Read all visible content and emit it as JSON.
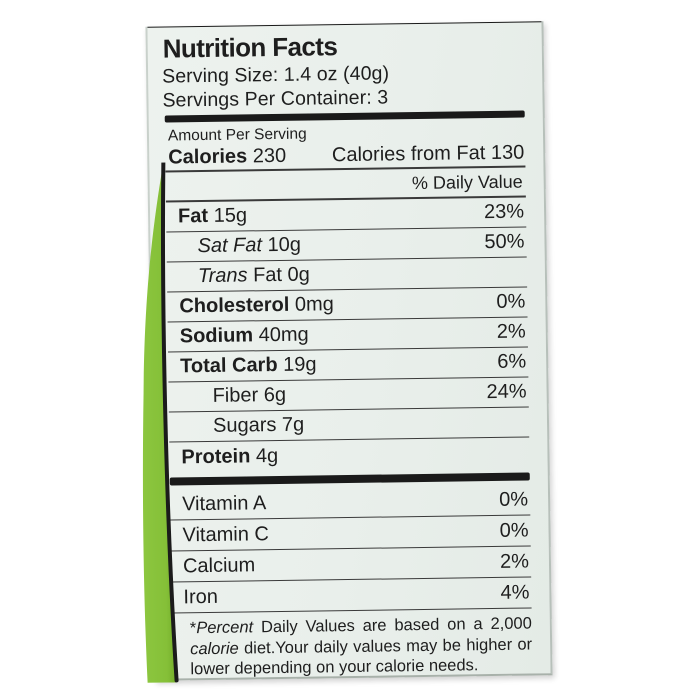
{
  "label": {
    "title": "Nutrition Facts",
    "serving_size": "Serving Size: 1.4 oz (40g)",
    "servings_per_container": "Servings Per Container: 3",
    "amount_per_serving": "Amount Per Serving",
    "calories_label": "Calories",
    "calories_value": "230",
    "calories_from_fat": "Calories from Fat 130",
    "daily_value_header": "% Daily Value",
    "nutrients": [
      {
        "bold": "Fat",
        "rest": " 15g",
        "value": "23%",
        "indent": 0
      },
      {
        "italic": "Sat Fat",
        "rest": " 10g",
        "value": "50%",
        "indent": 1
      },
      {
        "italic": "Trans",
        "rest": " Fat 0g",
        "value": "",
        "indent": 1
      },
      {
        "bold": "Cholesterol",
        "rest": " 0mg",
        "value": "0%",
        "indent": 0
      },
      {
        "bold": "Sodium",
        "rest": " 40mg",
        "value": "2%",
        "indent": 0
      },
      {
        "bold": "Total Carb",
        "rest": " 19g",
        "value": "6%",
        "indent": 0
      },
      {
        "rest": "Fiber 6g",
        "value": "24%",
        "indent": 2
      },
      {
        "rest": "Sugars 7g",
        "value": "",
        "indent": 2
      },
      {
        "bold": "Protein",
        "rest": " 4g",
        "value": "",
        "indent": 0,
        "last": true
      }
    ],
    "vitamins": [
      {
        "name": "Vitamin A",
        "value": "0%"
      },
      {
        "name": "Vitamin C",
        "value": "0%"
      },
      {
        "name": "Calcium",
        "value": "2%"
      },
      {
        "name": "Iron",
        "value": "4%"
      }
    ],
    "footnote": {
      "star": "*",
      "percent_italic": "Percent",
      "part1": " Daily Values are based on a 2,000 ",
      "calorie_italic": "calorie",
      "part2": " diet.Your daily values may be higher or lower depending on your calorie needs."
    }
  },
  "colors": {
    "package_green": "#8cc63f",
    "package_green_dark": "#74ad2a",
    "label_background": "#eaf0ec",
    "ink": "#1e1e1e",
    "top_line_green": "#56a322"
  }
}
